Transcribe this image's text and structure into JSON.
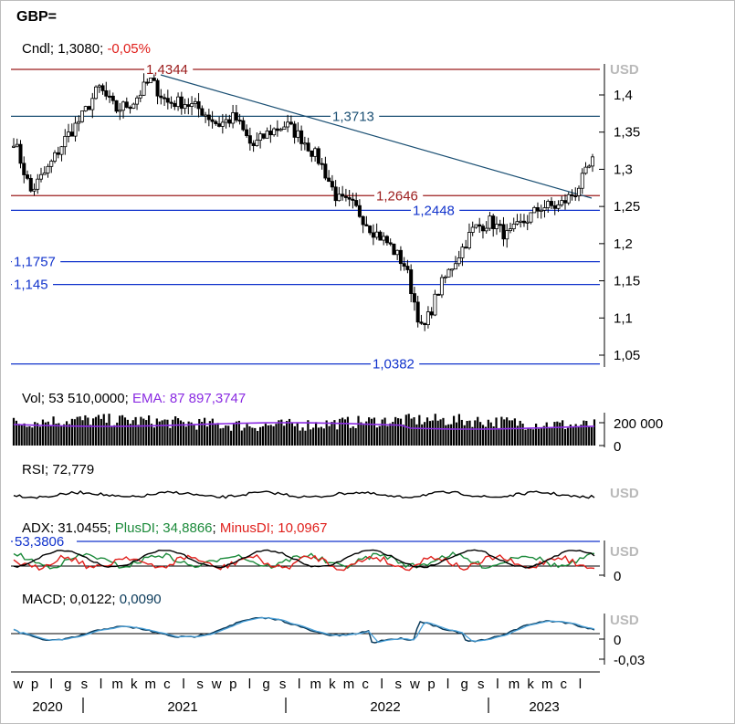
{
  "symbol": "GBP=",
  "colors": {
    "candle": "#000000",
    "resistance": "#9b1b1b",
    "support_blue": "#1133cc",
    "teal": "#1a4f73",
    "ema": "#8a2be2",
    "plus_di": "#1b8a3a",
    "minus_di": "#e0201c",
    "macd": "#0a3a5a",
    "signal": "#4aa0d8",
    "axis_label_gray": "#b9b9b9"
  },
  "panels": {
    "price": {
      "header": {
        "name": "Cndl",
        "value": "1,3080",
        "change": "-0,05%"
      },
      "currency": "USD",
      "yticks": [
        "1,4",
        "1,35",
        "1,3",
        "1,25",
        "1,2",
        "1,15",
        "1,1",
        "1,05"
      ],
      "levels": [
        {
          "label": "1,4344",
          "value": 1.4344,
          "color": "resistance"
        },
        {
          "label": "1,3713",
          "value": 1.3713,
          "color": "teal"
        },
        {
          "label": "1,2646",
          "value": 1.2646,
          "color": "resistance"
        },
        {
          "label": "1,2448",
          "value": 1.2448,
          "color": "support_blue"
        },
        {
          "label": "1,1757",
          "value": 1.1757,
          "color": "support_blue"
        },
        {
          "label": "1,145",
          "value": 1.145,
          "color": "support_blue"
        },
        {
          "label": "1,0382",
          "value": 1.0382,
          "color": "support_blue"
        }
      ]
    },
    "volume": {
      "header": {
        "name": "Vol",
        "value": "53 510,0000",
        "ema_name": "EMA",
        "ema_value": "87 897,3747"
      },
      "yticks": [
        "200 000",
        "0"
      ]
    },
    "rsi": {
      "header": {
        "name": "RSI",
        "value": "72,779"
      },
      "currency": "USD"
    },
    "adx": {
      "header": {
        "name": "ADX",
        "value": "31,0455",
        "plus_name": "PlusDI",
        "plus_value": "34,8866",
        "minus_name": "MinusDI",
        "minus_value": "10,0967"
      },
      "level_label": "53,3806",
      "currency": "USD",
      "yticks": [
        "0"
      ]
    },
    "macd": {
      "header": {
        "name": "MACD",
        "value": "0,0122",
        "signal_value": "0,0090"
      },
      "currency": "USD",
      "yticks": [
        "0",
        "-0,03"
      ]
    }
  },
  "x_axis": {
    "month_letters": [
      "w",
      "p",
      "l",
      "g",
      "s",
      "l",
      "m",
      "k",
      "m",
      "c",
      "l",
      "s",
      "w",
      "p",
      "l",
      "g",
      "s",
      "l",
      "m",
      "k",
      "m",
      "c",
      "l",
      "s",
      "w",
      "p",
      "l",
      "g",
      "s",
      "l",
      "m",
      "k",
      "m",
      "c",
      "l"
    ],
    "years": [
      "2020",
      "2021",
      "2022",
      "2023"
    ]
  },
  "chart_data": [
    {
      "type": "candlestick",
      "title": "GBP=",
      "ylabel": "USD",
      "x_range": [
        "2020-09",
        "2023-07"
      ],
      "ylim": [
        1.02,
        1.45
      ],
      "close_path": [
        {
          "x": "2020-09",
          "y": 1.34
        },
        {
          "x": "2020-10",
          "y": 1.27
        },
        {
          "x": "2020-11",
          "y": 1.3
        },
        {
          "x": "2020-12",
          "y": 1.34
        },
        {
          "x": "2021-01",
          "y": 1.37
        },
        {
          "x": "2021-02",
          "y": 1.41
        },
        {
          "x": "2021-03",
          "y": 1.38
        },
        {
          "x": "2021-04",
          "y": 1.39
        },
        {
          "x": "2021-05",
          "y": 1.42
        },
        {
          "x": "2021-06",
          "y": 1.39
        },
        {
          "x": "2021-07",
          "y": 1.39
        },
        {
          "x": "2021-08",
          "y": 1.38
        },
        {
          "x": "2021-09",
          "y": 1.36
        },
        {
          "x": "2021-10",
          "y": 1.37
        },
        {
          "x": "2021-11",
          "y": 1.33
        },
        {
          "x": "2021-12",
          "y": 1.35
        },
        {
          "x": "2022-01",
          "y": 1.36
        },
        {
          "x": "2022-02",
          "y": 1.34
        },
        {
          "x": "2022-03",
          "y": 1.31
        },
        {
          "x": "2022-04",
          "y": 1.26
        },
        {
          "x": "2022-05",
          "y": 1.25
        },
        {
          "x": "2022-06",
          "y": 1.22
        },
        {
          "x": "2022-07",
          "y": 1.2
        },
        {
          "x": "2022-08",
          "y": 1.17
        },
        {
          "x": "2022-09",
          "y": 1.08
        },
        {
          "x": "2022-10",
          "y": 1.14
        },
        {
          "x": "2022-11",
          "y": 1.18
        },
        {
          "x": "2022-12",
          "y": 1.22
        },
        {
          "x": "2023-01",
          "y": 1.23
        },
        {
          "x": "2023-02",
          "y": 1.21
        },
        {
          "x": "2023-03",
          "y": 1.23
        },
        {
          "x": "2023-04",
          "y": 1.25
        },
        {
          "x": "2023-05",
          "y": 1.25
        },
        {
          "x": "2023-06",
          "y": 1.27
        },
        {
          "x": "2023-07",
          "y": 1.31
        }
      ]
    },
    {
      "type": "bar",
      "title": "Vol",
      "values_note": "volume bars roughly 100 000 – 200 000",
      "ema_value": 87897.3747,
      "ylim": [
        0,
        250000
      ]
    },
    {
      "type": "line",
      "title": "RSI",
      "last": 72.779
    },
    {
      "type": "line",
      "title": "ADX",
      "series": [
        {
          "name": "ADX",
          "last": 31.0455
        },
        {
          "name": "PlusDI",
          "last": 34.8866
        },
        {
          "name": "MinusDI",
          "last": 10.0967
        }
      ],
      "level": 53.3806
    },
    {
      "type": "line",
      "title": "MACD",
      "series": [
        {
          "name": "MACD",
          "last": 0.0122
        },
        {
          "name": "Signal",
          "last": 0.009
        }
      ],
      "ylim": [
        -0.05,
        0.03
      ]
    }
  ]
}
